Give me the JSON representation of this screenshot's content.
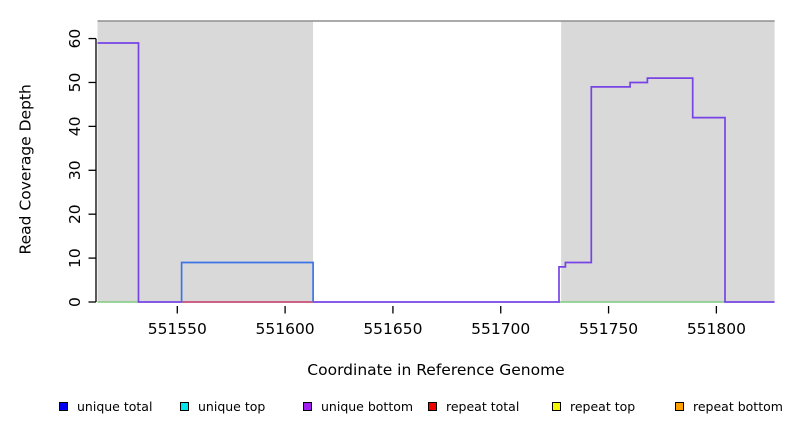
{
  "chart_data": {
    "type": "line",
    "title": "",
    "xlabel": "Coordinate in Reference Genome",
    "ylabel": "Read Coverage Depth",
    "xlim": [
      551513,
      551827
    ],
    "ylim": [
      0,
      64
    ],
    "grid": false,
    "x_ticks": [
      551550,
      551600,
      551650,
      551700,
      551750,
      551800
    ],
    "y_ticks": [
      0,
      10,
      20,
      30,
      40,
      50,
      60
    ],
    "regions": [
      {
        "name": "repeat-region-left",
        "x0": 551513,
        "x1": 551613,
        "fill": "#d9d9d9"
      },
      {
        "name": "gap-region",
        "x0": 551613,
        "x1": 551728,
        "fill": "#ffffff"
      },
      {
        "name": "repeat-region-right",
        "x0": 551728,
        "x1": 551827,
        "fill": "#d9d9d9"
      }
    ],
    "top_border": {
      "y": 64,
      "color": "#8f8f8f"
    },
    "series": [
      {
        "name": "baseline-green-left",
        "color": "#7fcc7f",
        "width": 1.4,
        "points": [
          [
            551513,
            0
          ],
          [
            551532,
            0
          ]
        ]
      },
      {
        "name": "baseline-green-right",
        "color": "#7fcc7f",
        "width": 1.4,
        "points": [
          [
            551727,
            0
          ],
          [
            551804,
            0
          ]
        ]
      },
      {
        "name": "unique-bottom",
        "color": "#7743e6",
        "width": 1.7,
        "points": [
          [
            551513,
            59
          ],
          [
            551532,
            59
          ],
          [
            551532,
            0
          ],
          [
            551727,
            0
          ],
          [
            551727,
            8
          ],
          [
            551730,
            8
          ],
          [
            551730,
            9
          ],
          [
            551742,
            9
          ],
          [
            551742,
            49
          ],
          [
            551760,
            49
          ],
          [
            551760,
            50
          ],
          [
            551768,
            50
          ],
          [
            551768,
            51
          ],
          [
            551789,
            51
          ],
          [
            551789,
            42
          ],
          [
            551804,
            42
          ],
          [
            551804,
            0
          ],
          [
            551827,
            0
          ]
        ]
      },
      {
        "name": "repeat-total",
        "color": "#e05c66",
        "width": 1.4,
        "points": [
          [
            551552,
            0
          ],
          [
            551613,
            0
          ]
        ]
      },
      {
        "name": "unique-total",
        "color": "#3c74e8",
        "width": 1.7,
        "points": [
          [
            551552,
            0
          ],
          [
            551552,
            9
          ],
          [
            551613,
            9
          ],
          [
            551613,
            0
          ]
        ]
      }
    ],
    "legend": [
      {
        "label": "unique total",
        "color": "#0000ee"
      },
      {
        "label": "unique top",
        "color": "#00e5ee"
      },
      {
        "label": "unique bottom",
        "color": "#a020f0"
      },
      {
        "label": "repeat total",
        "color": "#ee0000"
      },
      {
        "label": "repeat top",
        "color": "#f5f500"
      },
      {
        "label": "repeat bottom",
        "color": "#ffa000"
      }
    ],
    "legend_position": "bottom"
  }
}
